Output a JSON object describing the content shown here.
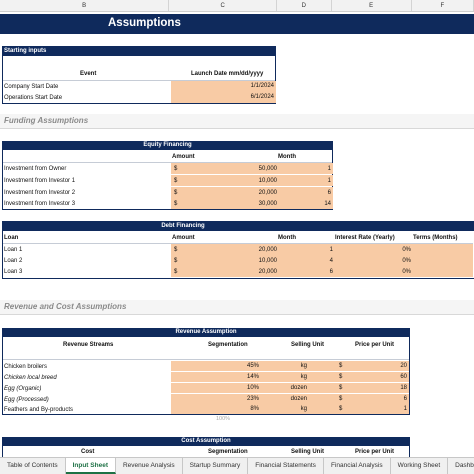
{
  "columns": [
    "B",
    "C",
    "D",
    "E",
    "F"
  ],
  "title": "Assumptions",
  "starting": {
    "header": "Starting inputs",
    "col_event": "Event",
    "col_date": "Launch Date mm/dd/yyyy",
    "rows": [
      {
        "event": "Company Start Date",
        "date": "1/1/2024"
      },
      {
        "event": "Operations Start Date",
        "date": "6/1/2024"
      }
    ]
  },
  "funding_title": "Funding Assumptions",
  "equity": {
    "header": "Equity Financing",
    "col_amount": "Amount",
    "col_month": "Month",
    "rows": [
      {
        "name": "Investment from Owner",
        "cur": "$",
        "amount": "50,000",
        "month": "1"
      },
      {
        "name": "Investment from Investor 1",
        "cur": "$",
        "amount": "10,000",
        "month": "1"
      },
      {
        "name": "Investment from Investor 2",
        "cur": "$",
        "amount": "20,000",
        "month": "6"
      },
      {
        "name": "Investment from Investor 3",
        "cur": "$",
        "amount": "30,000",
        "month": "14"
      }
    ]
  },
  "debt": {
    "header": "Debt Financing",
    "col_loan": "Loan",
    "col_amount": "Amount",
    "col_month": "Month",
    "col_rate": "Interest Rate (Yearly)",
    "col_terms": "Terms (Months)",
    "rows": [
      {
        "name": "Loan 1",
        "cur": "$",
        "amount": "20,000",
        "month": "1",
        "rate": "0%"
      },
      {
        "name": "Loan 2",
        "cur": "$",
        "amount": "10,000",
        "month": "4",
        "rate": "0%"
      },
      {
        "name": "Loan 3",
        "cur": "$",
        "amount": "20,000",
        "month": "6",
        "rate": "0%"
      }
    ]
  },
  "revcost_title": "Revenue and Cost Assumptions",
  "revenue": {
    "header": "Revenue Assumption",
    "col_streams": "Revenue Streams",
    "col_seg": "Segmentation",
    "col_unit": "Selling Unit",
    "col_price": "Price per Unit",
    "rows": [
      {
        "name": "Chicken broilers",
        "seg": "45%",
        "unit": "kg",
        "cur": "$",
        "price": "20"
      },
      {
        "name": "Chicken local breed",
        "seg": "14%",
        "unit": "kg",
        "cur": "$",
        "price": "60"
      },
      {
        "name": "Egg (Organic)",
        "seg": "10%",
        "unit": "dozen",
        "cur": "$",
        "price": "18"
      },
      {
        "name": "Egg (Processed)",
        "seg": "23%",
        "unit": "dozen",
        "cur": "$",
        "price": "6"
      },
      {
        "name": "Feathers and By-products",
        "seg": "8%",
        "unit": "kg",
        "cur": "$",
        "price": "1"
      }
    ],
    "total": "100%"
  },
  "cost": {
    "header": "Cost Assumption",
    "col_cost": "Cost",
    "col_seg": "Segmentation",
    "col_unit": "Selling Unit",
    "col_price": "Price per Unit"
  },
  "tabs": [
    "Table of Contents",
    "Input Sheet",
    "Revenue Analysis",
    "Startup Summary",
    "Financial Statements",
    "Financial Analysis",
    "Working Sheet",
    "Dashboard"
  ],
  "active_tab": "Input Sheet",
  "colors": {
    "navy": "#0f2a5c",
    "input_fill": "#f8cba5",
    "active_tab": "#1e7145"
  }
}
